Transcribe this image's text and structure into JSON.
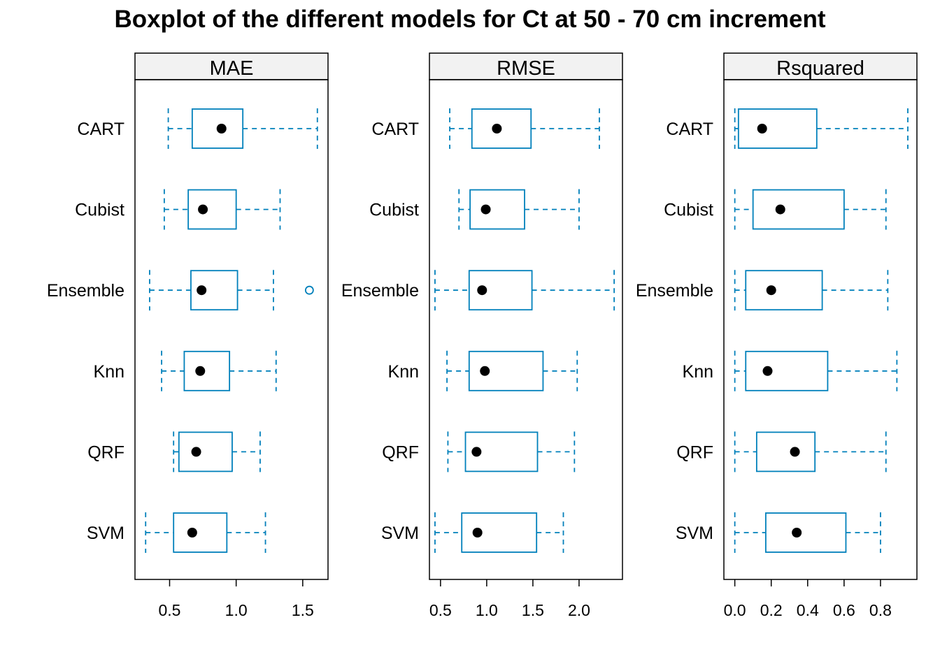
{
  "title": "Boxplot of the different models for Ct at 50 - 70 cm increment",
  "colors": {
    "box": "#0080BB",
    "median_point": "#000000",
    "strip_bg": "#F2F2F2",
    "axis": "#000000"
  },
  "chart_data": {
    "type": "boxplot",
    "orientation": "horizontal",
    "title": "Boxplot of the different models for Ct at 50 - 70 cm increment",
    "categories": [
      "CART",
      "Cubist",
      "Ensemble",
      "Knn",
      "QRF",
      "SVM"
    ],
    "panels": [
      {
        "name": "MAE",
        "xlim": [
          0.24,
          1.69
        ],
        "ticks": [
          0.5,
          1.0,
          1.5
        ],
        "tick_labels": [
          "0.5",
          "1.0",
          "1.5"
        ],
        "boxes": [
          {
            "category": "CART",
            "min": 0.49,
            "q1": 0.67,
            "median": 0.89,
            "q3": 1.05,
            "max": 1.61,
            "outliers": []
          },
          {
            "category": "Cubist",
            "min": 0.46,
            "q1": 0.64,
            "median": 0.75,
            "q3": 1.0,
            "max": 1.33,
            "outliers": []
          },
          {
            "category": "Ensemble",
            "min": 0.35,
            "q1": 0.66,
            "median": 0.74,
            "q3": 1.01,
            "max": 1.28,
            "outliers": [
              1.55
            ]
          },
          {
            "category": "Knn",
            "min": 0.44,
            "q1": 0.61,
            "median": 0.73,
            "q3": 0.95,
            "max": 1.3,
            "outliers": []
          },
          {
            "category": "QRF",
            "min": 0.53,
            "q1": 0.57,
            "median": 0.7,
            "q3": 0.97,
            "max": 1.18,
            "outliers": []
          },
          {
            "category": "SVM",
            "min": 0.32,
            "q1": 0.53,
            "median": 0.67,
            "q3": 0.93,
            "max": 1.22,
            "outliers": []
          }
        ]
      },
      {
        "name": "RMSE",
        "xlim": [
          0.38,
          2.47
        ],
        "ticks": [
          0.5,
          1.0,
          1.5,
          2.0
        ],
        "tick_labels": [
          "0.5",
          "1.0",
          "1.5",
          "2.0"
        ],
        "boxes": [
          {
            "category": "CART",
            "min": 0.6,
            "q1": 0.84,
            "median": 1.11,
            "q3": 1.48,
            "max": 2.22,
            "outliers": []
          },
          {
            "category": "Cubist",
            "min": 0.7,
            "q1": 0.82,
            "median": 0.99,
            "q3": 1.41,
            "max": 2.0,
            "outliers": []
          },
          {
            "category": "Ensemble",
            "min": 0.44,
            "q1": 0.81,
            "median": 0.95,
            "q3": 1.49,
            "max": 2.38,
            "outliers": []
          },
          {
            "category": "Knn",
            "min": 0.57,
            "q1": 0.81,
            "median": 0.98,
            "q3": 1.61,
            "max": 1.98,
            "outliers": []
          },
          {
            "category": "QRF",
            "min": 0.58,
            "q1": 0.77,
            "median": 0.89,
            "q3": 1.55,
            "max": 1.95,
            "outliers": []
          },
          {
            "category": "SVM",
            "min": 0.44,
            "q1": 0.73,
            "median": 0.9,
            "q3": 1.54,
            "max": 1.83,
            "outliers": []
          }
        ]
      },
      {
        "name": "Rsquared",
        "xlim": [
          -0.06,
          1.0
        ],
        "ticks": [
          0.0,
          0.2,
          0.4,
          0.6,
          0.8
        ],
        "tick_labels": [
          "0.0",
          "0.2",
          "0.4",
          "0.6",
          "0.8"
        ],
        "boxes": [
          {
            "category": "CART",
            "min": 0.0,
            "q1": 0.02,
            "median": 0.15,
            "q3": 0.45,
            "max": 0.95,
            "outliers": []
          },
          {
            "category": "Cubist",
            "min": 0.0,
            "q1": 0.1,
            "median": 0.25,
            "q3": 0.6,
            "max": 0.83,
            "outliers": []
          },
          {
            "category": "Ensemble",
            "min": 0.0,
            "q1": 0.06,
            "median": 0.2,
            "q3": 0.48,
            "max": 0.84,
            "outliers": []
          },
          {
            "category": "Knn",
            "min": 0.0,
            "q1": 0.06,
            "median": 0.18,
            "q3": 0.51,
            "max": 0.89,
            "outliers": []
          },
          {
            "category": "QRF",
            "min": 0.0,
            "q1": 0.12,
            "median": 0.33,
            "q3": 0.44,
            "max": 0.83,
            "outliers": []
          },
          {
            "category": "SVM",
            "min": 0.0,
            "q1": 0.17,
            "median": 0.34,
            "q3": 0.61,
            "max": 0.8,
            "outliers": []
          }
        ]
      }
    ],
    "grid": false,
    "legend": "none"
  }
}
